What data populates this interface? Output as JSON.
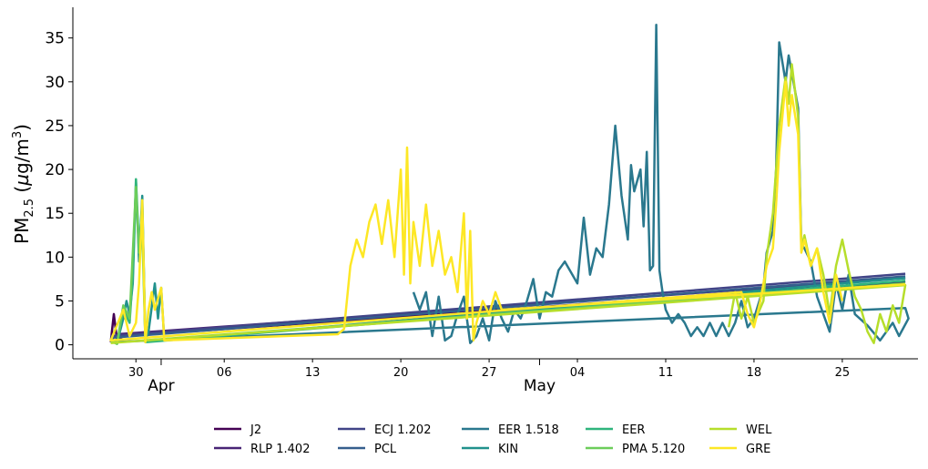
{
  "chart_data": {
    "type": "line",
    "title": "",
    "xlabel": "",
    "ylabel": "PM2.5 (µg/m3)",
    "ylabel_parts": {
      "main": "PM",
      "sub": "2.5",
      "unit_open": " (",
      "mu": "µ",
      "unit_mid": "g/m",
      "sup": "3",
      "unit_close": ")"
    },
    "x_range": [
      "2023-03-25",
      "2023-05-31"
    ],
    "ylim": [
      -1.6,
      38.5
    ],
    "y_ticks": [
      0,
      5,
      10,
      15,
      20,
      25,
      30,
      35
    ],
    "x_ticks": [
      {
        "date": "2023-03-30",
        "label": "30"
      },
      {
        "date": "2023-04-06",
        "label": "06"
      },
      {
        "date": "2023-04-13",
        "label": "13"
      },
      {
        "date": "2023-04-20",
        "label": "20"
      },
      {
        "date": "2023-04-27",
        "label": "27"
      },
      {
        "date": "2023-05-04",
        "label": "04"
      },
      {
        "date": "2023-05-11",
        "label": "11"
      },
      {
        "date": "2023-05-18",
        "label": "18"
      },
      {
        "date": "2023-05-25",
        "label": "25"
      }
    ],
    "month_ticks": [
      {
        "date": "2023-04-01",
        "label": "Apr"
      },
      {
        "date": "2023-05-01",
        "label": "May"
      }
    ],
    "grid": false,
    "legend_position": "bottom-center",
    "series": [
      {
        "name": "J2",
        "color": "#440154",
        "points": [
          [
            "2023-03-28",
            0.3
          ],
          [
            "2023-03-28T06",
            3.5
          ],
          [
            "2023-03-28T12",
            0.5
          ],
          [
            "2023-03-29",
            1.0
          ],
          [
            "2023-05-30",
            7.2
          ]
        ]
      },
      {
        "name": "RLP 1.402",
        "color": "#482475",
        "points": [
          [
            "2023-03-28",
            0.5
          ],
          [
            "2023-03-28T12",
            1.2
          ],
          [
            "2023-05-30",
            7.6
          ]
        ]
      },
      {
        "name": "ECJ 1.202",
        "color": "#414487",
        "points": [
          [
            "2023-03-28",
            1.0
          ],
          [
            "2023-05-30",
            8.1
          ]
        ]
      },
      {
        "name": "PCL",
        "color": "#355f8d",
        "points": [
          [
            "2023-03-28",
            0.8
          ],
          [
            "2023-05-30",
            7.8
          ]
        ]
      },
      {
        "name": "EER 1.518",
        "color": "#2a788e",
        "points": [
          [
            "2023-03-28",
            0.3
          ],
          [
            "2023-05-30",
            4.2
          ],
          [
            "2023-05-30T06",
            3.0
          ],
          [
            "2023-05-29T12",
            1.0
          ],
          [
            "2023-05-29",
            2.5
          ],
          [
            "2023-05-28",
            0.5
          ],
          [
            "2023-05-27",
            2.2
          ],
          [
            "2023-05-26",
            3.5
          ],
          [
            "2023-05-25T12",
            8.0
          ],
          [
            "2023-05-25",
            4.0
          ],
          [
            "2023-05-24T12",
            7.0
          ],
          [
            "2023-05-24",
            1.5
          ],
          [
            "2023-05-23T12",
            3.5
          ],
          [
            "2023-05-23",
            5.5
          ],
          [
            "2023-05-22T12",
            9.5
          ],
          [
            "2023-05-22",
            11.0
          ],
          [
            "2023-05-21T18",
            11.5
          ],
          [
            "2023-05-21T12",
            27.0
          ],
          [
            "2023-05-21",
            31.0
          ],
          [
            "2023-05-20T18",
            33.0
          ],
          [
            "2023-05-20T12",
            30.0
          ],
          [
            "2023-05-20",
            34.5
          ],
          [
            "2023-05-19T18",
            20.0
          ],
          [
            "2023-05-19T12",
            13.0
          ],
          [
            "2023-05-19",
            10.5
          ],
          [
            "2023-05-18T18",
            6.5
          ],
          [
            "2023-05-18",
            3.0
          ],
          [
            "2023-05-17T12",
            2.0
          ],
          [
            "2023-05-17",
            5.0
          ],
          [
            "2023-05-16T12",
            2.5
          ],
          [
            "2023-05-16",
            1.0
          ],
          [
            "2023-05-15T12",
            2.5
          ],
          [
            "2023-05-15",
            1.0
          ],
          [
            "2023-05-14T12",
            2.5
          ],
          [
            "2023-05-14",
            1.0
          ],
          [
            "2023-05-13T12",
            2.0
          ],
          [
            "2023-05-13",
            1.0
          ],
          [
            "2023-05-12T12",
            2.5
          ],
          [
            "2023-05-12",
            3.5
          ],
          [
            "2023-05-11T12",
            2.5
          ],
          [
            "2023-05-11",
            4.0
          ],
          [
            "2023-05-10T18",
            6.0
          ],
          [
            "2023-05-10T12",
            8.5
          ],
          [
            "2023-05-10T06",
            36.5
          ],
          [
            "2023-05-10",
            9.0
          ],
          [
            "2023-05-09T18",
            8.5
          ],
          [
            "2023-05-09T12",
            22.0
          ],
          [
            "2023-05-09T06",
            13.5
          ],
          [
            "2023-05-09",
            20.0
          ],
          [
            "2023-05-08T12",
            17.5
          ],
          [
            "2023-05-08T06",
            20.5
          ],
          [
            "2023-05-08",
            12.0
          ],
          [
            "2023-05-07T12",
            17.0
          ],
          [
            "2023-05-07",
            25.0
          ],
          [
            "2023-05-06T12",
            16.0
          ],
          [
            "2023-05-06",
            10.0
          ],
          [
            "2023-05-05T12",
            11.0
          ],
          [
            "2023-05-05",
            8.0
          ],
          [
            "2023-05-04T12",
            14.5
          ],
          [
            "2023-05-04",
            7.0
          ],
          [
            "2023-05-03",
            9.5
          ],
          [
            "2023-05-02T12",
            8.5
          ],
          [
            "2023-05-02",
            5.5
          ],
          [
            "2023-05-01T12",
            6.0
          ],
          [
            "2023-05-01",
            3.0
          ],
          [
            "2023-04-30T12",
            7.5
          ],
          [
            "2023-04-30",
            5.0
          ],
          [
            "2023-04-29T12",
            3.0
          ],
          [
            "2023-04-29",
            4.0
          ],
          [
            "2023-04-28T12",
            1.5
          ],
          [
            "2023-04-28",
            3.0
          ],
          [
            "2023-04-27T12",
            5.0
          ],
          [
            "2023-04-27",
            0.5
          ],
          [
            "2023-04-26T12",
            3.0
          ],
          [
            "2023-04-26",
            1.0
          ],
          [
            "2023-04-25T12",
            0.2
          ],
          [
            "2023-04-25",
            5.5
          ],
          [
            "2023-04-24T12",
            3.5
          ],
          [
            "2023-04-24",
            1.0
          ],
          [
            "2023-04-23T12",
            0.5
          ],
          [
            "2023-04-23",
            5.5
          ],
          [
            "2023-04-22T12",
            1.0
          ],
          [
            "2023-04-22",
            6.0
          ],
          [
            "2023-04-21T12",
            4.0
          ],
          [
            "2023-04-21",
            6.0
          ]
        ]
      },
      {
        "name": "KIN",
        "color": "#21918c",
        "points": [
          [
            "2023-03-28",
            0.6
          ],
          [
            "2023-03-28T12",
            0.2
          ],
          [
            "2023-03-29",
            3.0
          ],
          [
            "2023-03-29T06",
            5.0
          ],
          [
            "2023-03-29T12",
            3.5
          ],
          [
            "2023-03-29T18",
            7.0
          ],
          [
            "2023-03-30",
            18.5
          ],
          [
            "2023-03-30T06",
            9.5
          ],
          [
            "2023-03-30T12",
            17.0
          ],
          [
            "2023-03-30T18",
            0.5
          ],
          [
            "2023-03-31",
            1.5
          ],
          [
            "2023-03-31T12",
            7.0
          ],
          [
            "2023-03-31T18",
            3.0
          ],
          [
            "2023-04-01",
            6.5
          ],
          [
            "2023-04-01T06",
            0.5
          ],
          [
            "2023-05-30",
            7.6
          ]
        ]
      },
      {
        "name": "EER",
        "color": "#2fb47c",
        "points": [
          [
            "2023-03-28",
            0.7
          ],
          [
            "2023-03-28T12",
            0.1
          ],
          [
            "2023-03-29",
            4.0
          ],
          [
            "2023-03-29T12",
            2.5
          ],
          [
            "2023-03-29T18",
            8.0
          ],
          [
            "2023-03-30",
            18.9
          ],
          [
            "2023-03-30T06",
            11.0
          ],
          [
            "2023-03-30T12",
            16.0
          ],
          [
            "2023-03-30T18",
            0.3
          ],
          [
            "2023-05-30",
            7.3
          ]
        ]
      },
      {
        "name": "PMA 5.120",
        "color": "#6ccd5a",
        "points": [
          [
            "2023-03-28",
            0.4
          ],
          [
            "2023-03-28T12",
            0.1
          ],
          [
            "2023-03-29",
            4.5
          ],
          [
            "2023-03-29T12",
            3.0
          ],
          [
            "2023-03-30",
            18.0
          ],
          [
            "2023-03-30T06",
            10.5
          ],
          [
            "2023-03-30T12",
            13.0
          ],
          [
            "2023-03-30T18",
            0.5
          ],
          [
            "2023-05-30",
            7.0
          ]
        ]
      },
      {
        "name": "WEL",
        "color": "#b6de2b",
        "points": [
          [
            "2023-03-28",
            0.2
          ],
          [
            "2023-05-30",
            6.8
          ],
          [
            "2023-05-29T12",
            2.5
          ],
          [
            "2023-05-29",
            4.5
          ],
          [
            "2023-05-28T12",
            1.5
          ],
          [
            "2023-05-28",
            3.5
          ],
          [
            "2023-05-27T12",
            0.2
          ],
          [
            "2023-05-27",
            1.5
          ],
          [
            "2023-05-26T12",
            4.0
          ],
          [
            "2023-05-26",
            5.5
          ],
          [
            "2023-05-25T12",
            8.5
          ],
          [
            "2023-05-25",
            12.0
          ],
          [
            "2023-05-24T12",
            9.0
          ],
          [
            "2023-05-24",
            3.5
          ],
          [
            "2023-05-23T12",
            8.0
          ],
          [
            "2023-05-23",
            11.0
          ],
          [
            "2023-05-22T12",
            9.0
          ],
          [
            "2023-05-22",
            12.5
          ],
          [
            "2023-05-21T18",
            11.0
          ],
          [
            "2023-05-21T12",
            26.0
          ],
          [
            "2023-05-21",
            32.0
          ],
          [
            "2023-05-20T18",
            27.5
          ],
          [
            "2023-05-20T12",
            30.5
          ],
          [
            "2023-05-20",
            25.0
          ],
          [
            "2023-05-19T18",
            20.0
          ],
          [
            "2023-05-19T12",
            15.0
          ],
          [
            "2023-05-19",
            10.0
          ],
          [
            "2023-05-18T18",
            5.0
          ],
          [
            "2023-05-18",
            2.5
          ],
          [
            "2023-05-17T12",
            5.5
          ],
          [
            "2023-05-17",
            3.0
          ],
          [
            "2023-05-16T12",
            6.0
          ],
          [
            "2023-05-16",
            2.0
          ]
        ]
      },
      {
        "name": "GRE",
        "color": "#fde725",
        "points": [
          [
            "2023-05-25",
            5.0
          ],
          [
            "2023-05-24T12",
            8.0
          ],
          [
            "2023-05-24",
            2.5
          ],
          [
            "2023-05-23T12",
            6.0
          ],
          [
            "2023-05-23",
            11.0
          ],
          [
            "2023-05-22T12",
            9.0
          ],
          [
            "2023-05-22",
            12.0
          ],
          [
            "2023-05-21T18",
            10.5
          ],
          [
            "2023-05-21T12",
            24.0
          ],
          [
            "2023-05-21",
            28.5
          ],
          [
            "2023-05-20T18",
            25.0
          ],
          [
            "2023-05-20T12",
            30.0
          ],
          [
            "2023-05-20",
            22.0
          ],
          [
            "2023-05-19T18",
            16.0
          ],
          [
            "2023-05-19T12",
            11.0
          ],
          [
            "2023-05-19",
            9.0
          ],
          [
            "2023-05-18T12",
            5.0
          ],
          [
            "2023-05-18",
            2.0
          ],
          [
            "2023-05-17T12",
            3.5
          ],
          [
            "2023-05-17",
            6.0
          ],
          [
            "2023-03-28",
            0.5
          ],
          [
            "2023-03-29",
            4.0
          ],
          [
            "2023-03-29T12",
            1.0
          ],
          [
            "2023-03-30",
            2.5
          ],
          [
            "2023-03-30T06",
            7.0
          ],
          [
            "2023-03-30T12",
            16.5
          ],
          [
            "2023-03-30T18",
            0.3
          ],
          [
            "2023-03-31",
            4.0
          ],
          [
            "2023-03-31T06",
            6.0
          ],
          [
            "2023-03-31T12",
            4.0
          ],
          [
            "2023-04-01",
            6.5
          ],
          [
            "2023-04-01T06",
            0.5
          ],
          [
            "2023-04-15",
            1.2
          ],
          [
            "2023-04-15T12",
            1.8
          ],
          [
            "2023-04-16",
            9.0
          ],
          [
            "2023-04-16T12",
            12.0
          ],
          [
            "2023-04-17",
            10.0
          ],
          [
            "2023-04-17T12",
            14.0
          ],
          [
            "2023-04-18",
            16.0
          ],
          [
            "2023-04-18T12",
            11.5
          ],
          [
            "2023-04-19",
            16.5
          ],
          [
            "2023-04-19T12",
            10.0
          ],
          [
            "2023-04-20",
            20.0
          ],
          [
            "2023-04-20T06",
            8.0
          ],
          [
            "2023-04-20T12",
            22.5
          ],
          [
            "2023-04-20T18",
            7.0
          ],
          [
            "2023-04-21",
            14.0
          ],
          [
            "2023-04-21T12",
            9.0
          ],
          [
            "2023-04-22",
            16.0
          ],
          [
            "2023-04-22T12",
            9.0
          ],
          [
            "2023-04-23",
            13.0
          ],
          [
            "2023-04-23T12",
            8.0
          ],
          [
            "2023-04-24",
            10.0
          ],
          [
            "2023-04-24T12",
            6.0
          ],
          [
            "2023-04-25",
            15.0
          ],
          [
            "2023-04-25T06",
            3.0
          ],
          [
            "2023-04-25T12",
            13.0
          ],
          [
            "2023-04-25T18",
            0.5
          ],
          [
            "2023-04-26",
            2.5
          ],
          [
            "2023-04-26T12",
            5.0
          ],
          [
            "2023-04-27",
            3.5
          ],
          [
            "2023-04-27T12",
            6.0
          ],
          [
            "2023-04-28",
            4.0
          ],
          [
            "2023-05-30",
            6.9
          ]
        ]
      }
    ]
  }
}
